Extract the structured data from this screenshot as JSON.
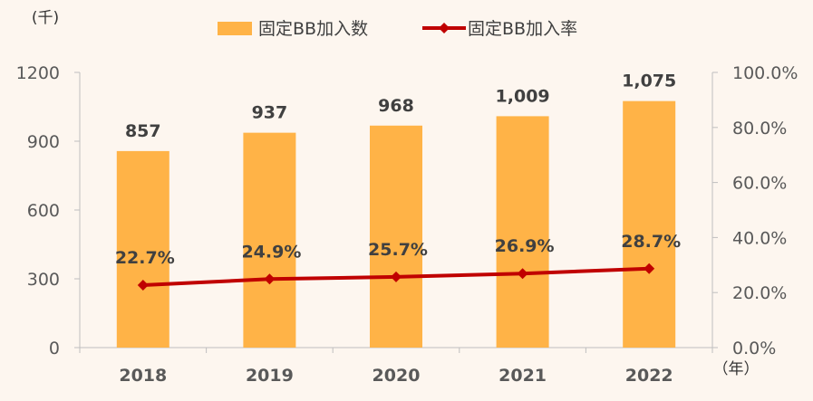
{
  "chart_data": {
    "type": "bar",
    "categories": [
      "2018",
      "2019",
      "2020",
      "2021",
      "2022"
    ],
    "series": [
      {
        "name": "固定BB加入数",
        "type": "bar",
        "axis": "left",
        "values": [
          857,
          937,
          968,
          1009,
          1075
        ],
        "labels": [
          "857",
          "937",
          "968",
          "1,009",
          "1,075"
        ],
        "color": "#ffb347"
      },
      {
        "name": "固定BB加入率",
        "type": "line",
        "axis": "right",
        "values": [
          22.7,
          24.9,
          25.7,
          26.9,
          28.7
        ],
        "labels": [
          "22.7%",
          "24.9%",
          "25.7%",
          "26.9%",
          "28.7%"
        ],
        "color": "#c00000"
      }
    ],
    "y_left": {
      "unit": "(千)",
      "ylim": [
        0,
        1200
      ],
      "ticks": [
        "0",
        "300",
        "600",
        "900",
        "1200"
      ]
    },
    "y_right": {
      "ylim": [
        0,
        100
      ],
      "ticks": [
        "0.0%",
        "20.0%",
        "40.0%",
        "60.0%",
        "80.0%",
        "100.0%"
      ]
    },
    "x_unit": "（年）",
    "legend_position": "top",
    "grid": false
  }
}
